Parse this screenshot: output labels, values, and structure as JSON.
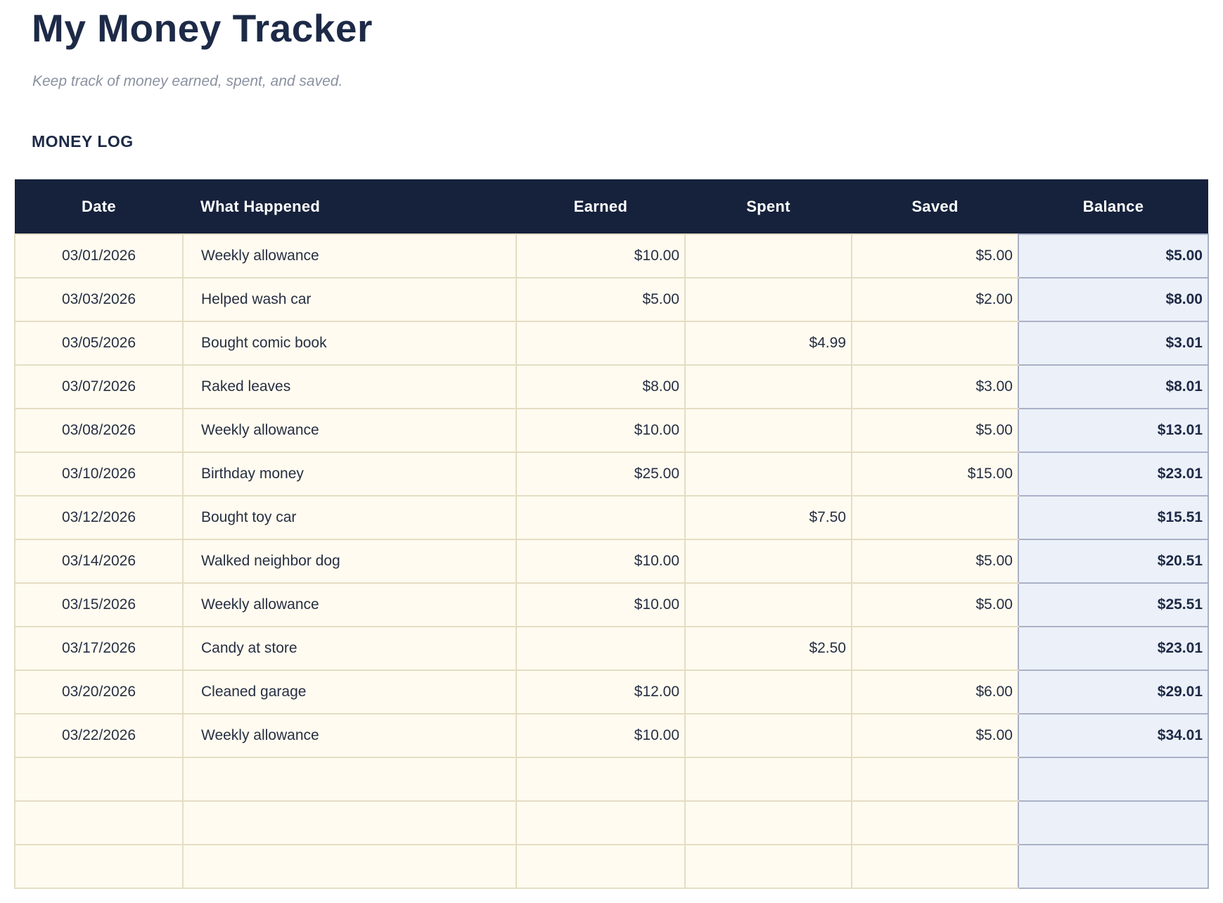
{
  "page": {
    "title": "My Money Tracker",
    "subtitle": "Keep track of money earned, spent, and saved.",
    "section_title": "MONEY LOG"
  },
  "colors": {
    "header_bg": "#16223C",
    "header_text": "#FFFFFF",
    "row_bg": "#FFFBF0",
    "row_border": "#E5DDC3",
    "balance_bg": "#ECF0F8",
    "balance_border": "#AAB1C8",
    "title_text": "#1D2A47",
    "body_text": "#262F42",
    "subtitle_text": "#8A91A0"
  },
  "table": {
    "columns": [
      {
        "key": "date",
        "label": "Date"
      },
      {
        "key": "description",
        "label": "What Happened"
      },
      {
        "key": "earned",
        "label": "Earned"
      },
      {
        "key": "spent",
        "label": "Spent"
      },
      {
        "key": "saved",
        "label": "Saved"
      },
      {
        "key": "balance",
        "label": "Balance"
      }
    ],
    "rows": [
      {
        "date": "03/01/2026",
        "description": "Weekly allowance",
        "earned": "$10.00",
        "spent": "",
        "saved": "$5.00",
        "balance": "$5.00"
      },
      {
        "date": "03/03/2026",
        "description": "Helped wash car",
        "earned": "$5.00",
        "spent": "",
        "saved": "$2.00",
        "balance": "$8.00"
      },
      {
        "date": "03/05/2026",
        "description": "Bought comic book",
        "earned": "",
        "spent": "$4.99",
        "saved": "",
        "balance": "$3.01"
      },
      {
        "date": "03/07/2026",
        "description": "Raked leaves",
        "earned": "$8.00",
        "spent": "",
        "saved": "$3.00",
        "balance": "$8.01"
      },
      {
        "date": "03/08/2026",
        "description": "Weekly allowance",
        "earned": "$10.00",
        "spent": "",
        "saved": "$5.00",
        "balance": "$13.01"
      },
      {
        "date": "03/10/2026",
        "description": "Birthday money",
        "earned": "$25.00",
        "spent": "",
        "saved": "$15.00",
        "balance": "$23.01"
      },
      {
        "date": "03/12/2026",
        "description": "Bought toy car",
        "earned": "",
        "spent": "$7.50",
        "saved": "",
        "balance": "$15.51"
      },
      {
        "date": "03/14/2026",
        "description": "Walked neighbor dog",
        "earned": "$10.00",
        "spent": "",
        "saved": "$5.00",
        "balance": "$20.51"
      },
      {
        "date": "03/15/2026",
        "description": "Weekly allowance",
        "earned": "$10.00",
        "spent": "",
        "saved": "$5.00",
        "balance": "$25.51"
      },
      {
        "date": "03/17/2026",
        "description": "Candy at store",
        "earned": "",
        "spent": "$2.50",
        "saved": "",
        "balance": "$23.01"
      },
      {
        "date": "03/20/2026",
        "description": "Cleaned garage",
        "earned": "$12.00",
        "spent": "",
        "saved": "$6.00",
        "balance": "$29.01"
      },
      {
        "date": "03/22/2026",
        "description": "Weekly allowance",
        "earned": "$10.00",
        "spent": "",
        "saved": "$5.00",
        "balance": "$34.01"
      }
    ],
    "empty_rows": 3
  }
}
